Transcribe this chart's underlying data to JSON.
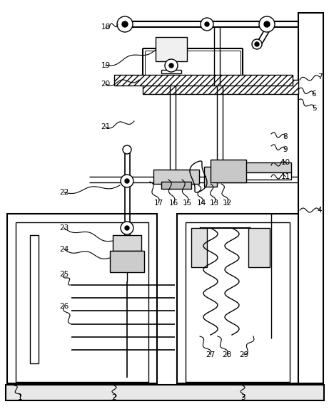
{
  "bg": "#ffffff",
  "lc": "#000000",
  "fw": 4.61,
  "fh": 5.74,
  "dpi": 100,
  "labels": [
    [
      "1",
      28,
      558
    ],
    [
      "2",
      160,
      558
    ],
    [
      "3",
      340,
      558
    ],
    [
      "4",
      448,
      295
    ],
    [
      "5",
      438,
      152
    ],
    [
      "6",
      438,
      132
    ],
    [
      "7",
      448,
      108
    ],
    [
      "8",
      390,
      192
    ],
    [
      "9",
      390,
      210
    ],
    [
      "10",
      390,
      228
    ],
    [
      "11",
      390,
      248
    ],
    [
      "12",
      310,
      285
    ],
    [
      "13",
      295,
      285
    ],
    [
      "14",
      278,
      285
    ],
    [
      "15",
      260,
      285
    ],
    [
      "16",
      242,
      285
    ],
    [
      "17",
      222,
      285
    ],
    [
      "18",
      148,
      38
    ],
    [
      "19",
      148,
      92
    ],
    [
      "20",
      148,
      118
    ],
    [
      "21",
      148,
      178
    ],
    [
      "22",
      90,
      270
    ],
    [
      "23",
      90,
      320
    ],
    [
      "24",
      90,
      350
    ],
    [
      "25",
      90,
      385
    ],
    [
      "26",
      90,
      430
    ],
    [
      "27",
      295,
      498
    ],
    [
      "28",
      318,
      498
    ],
    [
      "29",
      342,
      498
    ]
  ]
}
